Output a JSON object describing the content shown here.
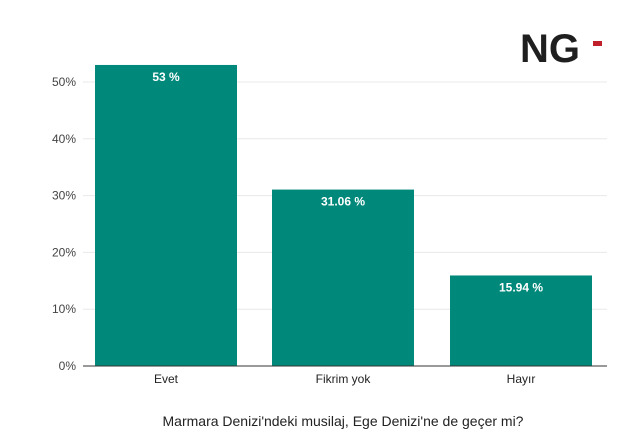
{
  "logo": {
    "text": "NG",
    "colors": {
      "dark": "#1f1f1f",
      "accent": "#c0202a"
    }
  },
  "colors": {
    "bar": "#00897b",
    "grid": "#e8e8e8",
    "axis": "#333333",
    "data_label": "#ffffff"
  },
  "chart_data": {
    "type": "bar",
    "title": "",
    "xlabel": "Marmara Denizi'ndeki musilaj, Ege Denizi'ne de geçer mi?",
    "ylabel": "",
    "categories": [
      "Evet",
      "Fikrim yok",
      "Hayır"
    ],
    "values": [
      53,
      31.06,
      15.94
    ],
    "data_labels": [
      "53 %",
      "31.06 %",
      "15.94 %"
    ],
    "ylim": [
      0,
      55
    ],
    "yticks": [
      0,
      10,
      20,
      30,
      40,
      50
    ],
    "ytick_labels": [
      "0%",
      "10%",
      "20%",
      "30%",
      "40%",
      "50%"
    ],
    "grid": true,
    "legend": "none"
  }
}
